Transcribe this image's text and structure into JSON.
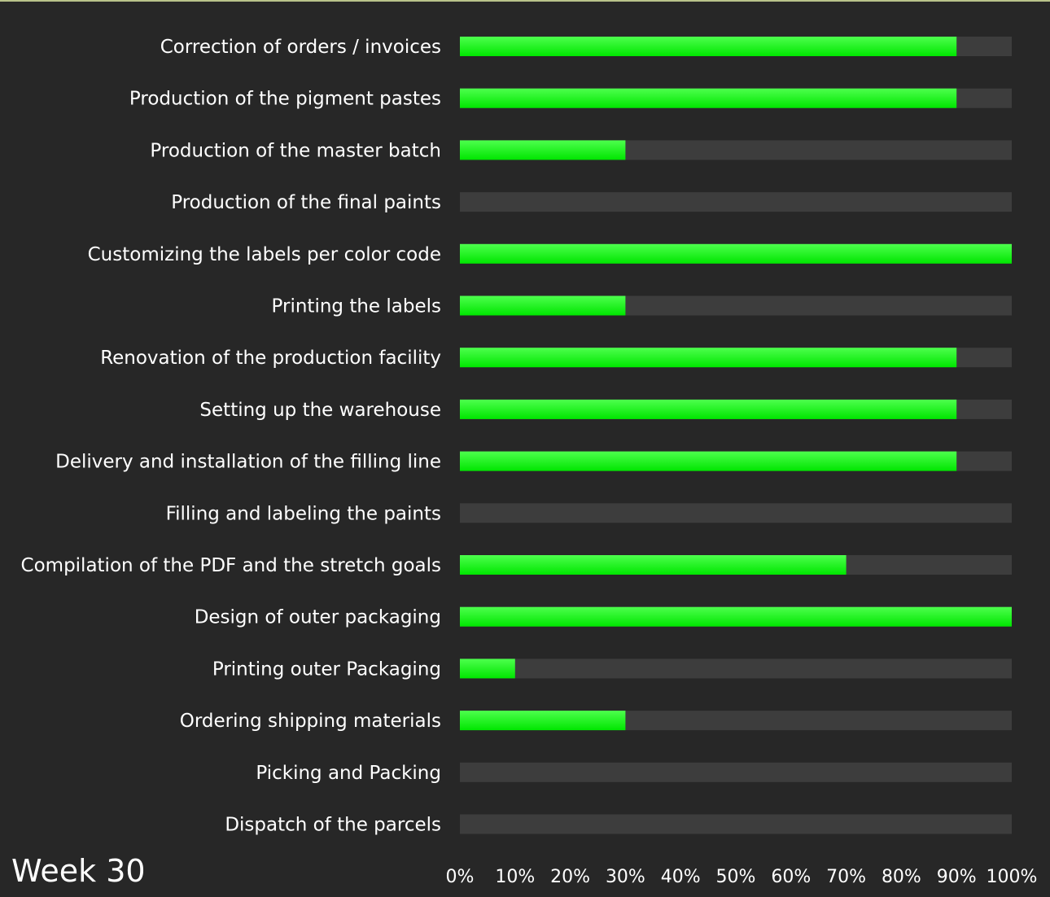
{
  "week_label": "Week 30",
  "colors": {
    "background": "#272727",
    "track": "#3d3d3d",
    "bar_light": "#4dff4d",
    "bar_dark": "#00e600",
    "text": "#ffffff"
  },
  "chart_data": {
    "type": "bar",
    "orientation": "horizontal",
    "categories": [
      "Correction of orders / invoices",
      "Production of the pigment pastes",
      "Production of the master batch",
      "Production of the final paints",
      "Customizing the labels per color code",
      "Printing the labels",
      "Renovation of the production facility",
      "Setting up the warehouse",
      "Delivery and installation of the filling line",
      "Filling and labeling the paints",
      "Compilation of the PDF and the stretch goals",
      "Design of outer packaging",
      "Printing outer Packaging",
      "Ordering shipping materials",
      "Picking and Packing",
      "Dispatch of the parcels"
    ],
    "values": [
      90,
      90,
      30,
      0,
      100,
      30,
      90,
      90,
      90,
      0,
      70,
      100,
      10,
      30,
      0,
      0
    ],
    "xlim": [
      0,
      100
    ],
    "x_ticks": [
      "0%",
      "10%",
      "20%",
      "30%",
      "40%",
      "50%",
      "60%",
      "70%",
      "80%",
      "90%",
      "100%"
    ],
    "grid": false,
    "legend": "none"
  }
}
